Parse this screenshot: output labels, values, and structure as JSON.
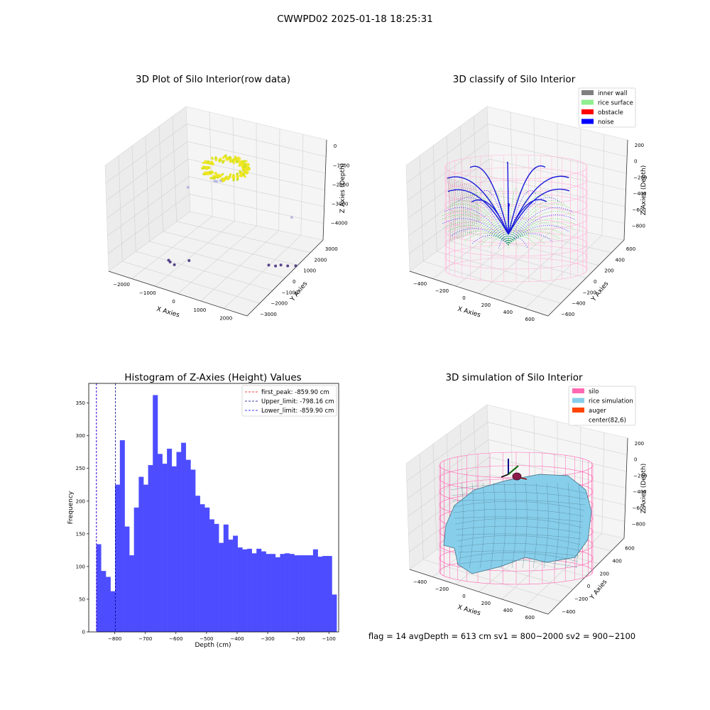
{
  "figure": {
    "suptitle": "CWWPD02 2025-01-18 18:25:31",
    "footer": "flag = 14   avgDepth = 613 cm  sv1 = 800~2000  sv2 = 900~2100"
  },
  "chart_data": [
    {
      "type": "scatter",
      "subtype": "3d",
      "title": "3D Plot of Silo Interior(row data)",
      "xlabel": "X Axies",
      "ylabel": "Y Axies",
      "zlabel": "Z Axies (Depth)",
      "x_ticks": [
        "−2000",
        "−1000",
        "0",
        "1000",
        "2000"
      ],
      "y_ticks": [
        "−3000",
        "−2000",
        "−1000",
        "0",
        "1000",
        "2000",
        "3000"
      ],
      "z_ticks": [
        "0",
        "−1000",
        "−2000",
        "−3000",
        "−4000"
      ],
      "xlim": [
        -2500,
        2500
      ],
      "ylim": [
        -3200,
        3200
      ],
      "zlim": [
        -4600,
        200
      ],
      "colormap": "viridis",
      "points": [
        {
          "x": -150,
          "y": 100,
          "z": -600
        },
        {
          "x": 150,
          "y": 0,
          "z": -700
        },
        {
          "x": 0,
          "y": -150,
          "z": -800
        },
        {
          "x": 0,
          "y": 150,
          "z": -900
        },
        {
          "x": 150,
          "y": 200,
          "z": -750
        },
        {
          "x": -100,
          "y": -100,
          "z": -850
        },
        {
          "x": -1800,
          "y": 1500,
          "z": -2500
        },
        {
          "x": 1900,
          "y": 1600,
          "z": -2400
        },
        {
          "x": -1300,
          "y": -1100,
          "z": -4500
        },
        {
          "x": -1200,
          "y": -1200,
          "z": -4500
        },
        {
          "x": -1000,
          "y": -1300,
          "z": -4500
        },
        {
          "x": -700,
          "y": -800,
          "z": -4400
        },
        {
          "x": 1300,
          "y": 1100,
          "z": -4600
        },
        {
          "x": 1500,
          "y": 1200,
          "z": -4600
        },
        {
          "x": 1600,
          "y": 1400,
          "z": -4600
        },
        {
          "x": 1800,
          "y": 1500,
          "z": -4600
        },
        {
          "x": 2000,
          "y": 1700,
          "z": -4600
        }
      ]
    },
    {
      "type": "scatter",
      "subtype": "3d",
      "title": "3D classify of Silo Interior",
      "xlabel": "X Axies",
      "ylabel": "Y Axies",
      "zlabel": "Z Axies (Depth)",
      "x_ticks": [
        "−400",
        "−200",
        "0",
        "200",
        "400",
        "600"
      ],
      "y_ticks": [
        "−600",
        "−400",
        "−200",
        "0",
        "200",
        "400",
        "600"
      ],
      "z_ticks": [
        "200",
        "0",
        "−200",
        "−400",
        "−600",
        "−800"
      ],
      "xlim": [
        -500,
        700
      ],
      "ylim": [
        -650,
        650
      ],
      "zlim": [
        -950,
        300
      ],
      "legend_position": "upper right",
      "series": [
        {
          "name": "inner wall",
          "color": "#808080"
        },
        {
          "name": "rice surface",
          "color": "#90ee90"
        },
        {
          "name": "obstacle",
          "color": "#ff0000"
        },
        {
          "name": "noise",
          "color": "#0000ff"
        }
      ]
    },
    {
      "type": "histogram",
      "title": "Histogram of Z-Axies (Height) Values",
      "xlabel": "Depth (cm)",
      "ylabel": "Frequency",
      "xlim": [
        -885,
        -68
      ],
      "ylim": [
        0,
        380
      ],
      "x_ticks": [
        -800,
        -700,
        -600,
        -500,
        -400,
        -300,
        -200,
        -100
      ],
      "y_ticks": [
        0,
        50,
        100,
        150,
        200,
        250,
        300,
        350
      ],
      "bin_start": -859.9,
      "bin_width": 15.4,
      "values": [
        134,
        93,
        84,
        62,
        225,
        293,
        161,
        117,
        190,
        237,
        225,
        255,
        362,
        272,
        257,
        280,
        253,
        275,
        289,
        263,
        248,
        208,
        195,
        190,
        172,
        165,
        136,
        164,
        141,
        147,
        129,
        126,
        127,
        120,
        127,
        123,
        119,
        119,
        114,
        119,
        120,
        119,
        117,
        117,
        117,
        117,
        126,
        115,
        116,
        116,
        57
      ],
      "bar_color": "#4d4dff",
      "lines": [
        {
          "label": "first_peak: -859.90 cm",
          "x": -859.9,
          "color": "#ff0000"
        },
        {
          "label": "Upper_limit: -798.16 cm",
          "x": -798.16,
          "color": "#00008b"
        },
        {
          "label": "Lower_limit: -859.90 cm",
          "x": -859.9,
          "color": "#0000ff"
        }
      ],
      "legend_position": "upper right"
    },
    {
      "type": "surface",
      "subtype": "3d",
      "title": "3D simulation of Silo Interior",
      "xlabel": "X Axies",
      "ylabel": "Y Axies",
      "zlabel": "Z Axies (Depth)",
      "x_ticks": [
        "−400",
        "−200",
        "0",
        "200",
        "400",
        "600"
      ],
      "y_ticks": [
        "−400",
        "−200",
        "0",
        "200",
        "400",
        "600"
      ],
      "z_ticks": [
        "200",
        "0",
        "−200",
        "−400",
        "−600",
        "−800"
      ],
      "xlim": [
        -500,
        700
      ],
      "ylim": [
        -550,
        650
      ],
      "zlim": [
        -950,
        300
      ],
      "legend_position": "upper right",
      "series": [
        {
          "name": "silo",
          "color": "#ff69b4"
        },
        {
          "name": "rice simulation",
          "color": "#87ceeb"
        },
        {
          "name": "auger",
          "color": "#ff4500"
        },
        {
          "name": "center(82,6)",
          "color": "#ffffff"
        }
      ]
    }
  ]
}
